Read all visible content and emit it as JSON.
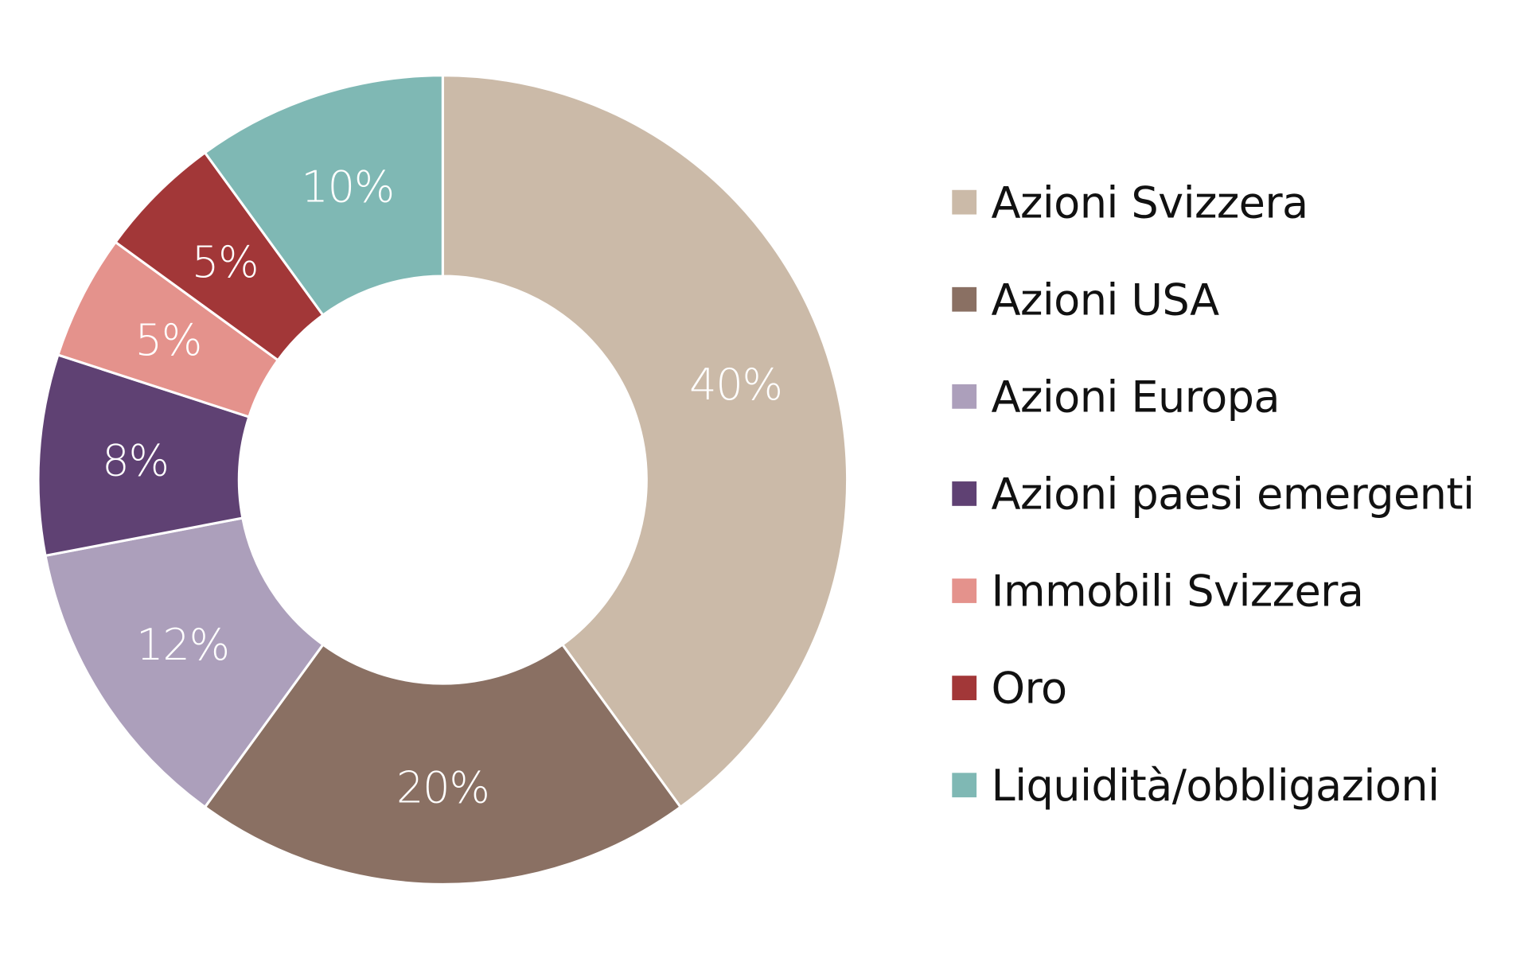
{
  "chart_data": {
    "type": "pie",
    "variant": "donut",
    "title": "",
    "start_angle": "12 o'clock, clockwise",
    "categories": [
      "Azioni Svizzera",
      "Azioni USA",
      "Azioni Europa",
      "Azioni paesi emergenti",
      "Immobili Svizzera",
      "Oro",
      "Liquidità/obbligazioni"
    ],
    "values": [
      40,
      20,
      12,
      8,
      5,
      5,
      10
    ],
    "unit": "%",
    "labels": [
      "40%",
      "20%",
      "12%",
      "8%",
      "5%",
      "5%",
      "10%"
    ],
    "colors": [
      "#cbbaa8",
      "#8a7063",
      "#ac9fbb",
      "#5f4173",
      "#e4928c",
      "#a23738",
      "#7fb8b4"
    ],
    "legend_position": "right",
    "grid": false
  },
  "legend": {
    "items": [
      {
        "label": "Azioni Svizzera",
        "color": "#cbbaa8"
      },
      {
        "label": "Azioni USA",
        "color": "#8a7063"
      },
      {
        "label": "Azioni Europa",
        "color": "#ac9fbb"
      },
      {
        "label": "Azioni paesi emergenti",
        "color": "#5f4173"
      },
      {
        "label": "Immobili Svizzera",
        "color": "#e4928c"
      },
      {
        "label": "Oro",
        "color": "#a23738"
      },
      {
        "label": "Liquidità/obbligazioni",
        "color": "#7fb8b4"
      }
    ]
  }
}
